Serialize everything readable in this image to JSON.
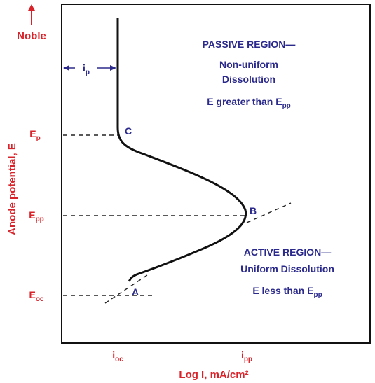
{
  "noble": "Noble",
  "y_axis_label": "Anode potential, E",
  "y_labels": [
    {
      "main": "E",
      "sub": "p"
    },
    {
      "main": "E",
      "sub": "pp"
    },
    {
      "main": "E",
      "sub": "oc"
    }
  ],
  "x_labels": [
    {
      "main": "i",
      "sub": "oc"
    },
    {
      "main": "i",
      "sub": "pp"
    }
  ],
  "x_axis_label": "Log I, mA/cm²",
  "ip_label": {
    "main": "i",
    "sub": "p"
  },
  "points": [
    "C",
    "B",
    "A"
  ],
  "passive": {
    "title": "PASSIVE REGION—",
    "line1": "Non-uniform",
    "line2": "Dissolution",
    "line3": {
      "main": "E greater than E",
      "sub": "pp"
    }
  },
  "active": {
    "title": "ACTIVE REGION—",
    "line1": "Uniform Dissolution",
    "line2": {
      "main": "E less than E",
      "sub": "pp"
    }
  }
}
